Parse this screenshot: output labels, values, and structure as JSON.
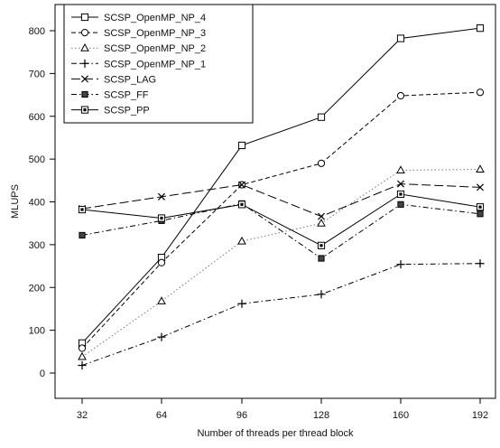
{
  "chart_data": {
    "type": "line",
    "title": "",
    "xlabel": "Number of threads per thread block",
    "ylabel": "MLUPS",
    "x": [
      32,
      64,
      96,
      128,
      160,
      192
    ],
    "xlim": [
      32,
      192
    ],
    "ylim": [
      0,
      800
    ],
    "y_ticks": [
      0,
      100,
      200,
      300,
      400,
      500,
      600,
      700,
      800
    ],
    "grid": false,
    "legend_position": "top-left",
    "series": [
      {
        "name": "SCSP_OpenMP_NP_4",
        "values": [
          70,
          270,
          532,
          598,
          782,
          806
        ],
        "marker": "square",
        "dash": "solid"
      },
      {
        "name": "SCSP_OpenMP_NP_3",
        "values": [
          58,
          258,
          440,
          490,
          648,
          656
        ],
        "marker": "circle",
        "dash": "dashed"
      },
      {
        "name": "SCSP_OpenMP_NP_2",
        "values": [
          38,
          168,
          308,
          350,
          474,
          476
        ],
        "marker": "triangle",
        "dash": "dotted"
      },
      {
        "name": "SCSP_OpenMP_NP_1",
        "values": [
          18,
          84,
          162,
          184,
          254,
          256
        ],
        "marker": "plus",
        "dash": "dash-dot"
      },
      {
        "name": "SCSP_LAG",
        "values": [
          384,
          412,
          440,
          366,
          442,
          434
        ],
        "marker": "cross",
        "dash": "long-dash"
      },
      {
        "name": "SCSP_FF",
        "values": [
          322,
          356,
          396,
          268,
          394,
          372
        ],
        "marker": "filled-square",
        "dash": "dash-dot"
      },
      {
        "name": "SCSP_PP",
        "values": [
          382,
          362,
          394,
          298,
          418,
          388
        ],
        "marker": "boxed-square",
        "dash": "solid"
      }
    ]
  }
}
